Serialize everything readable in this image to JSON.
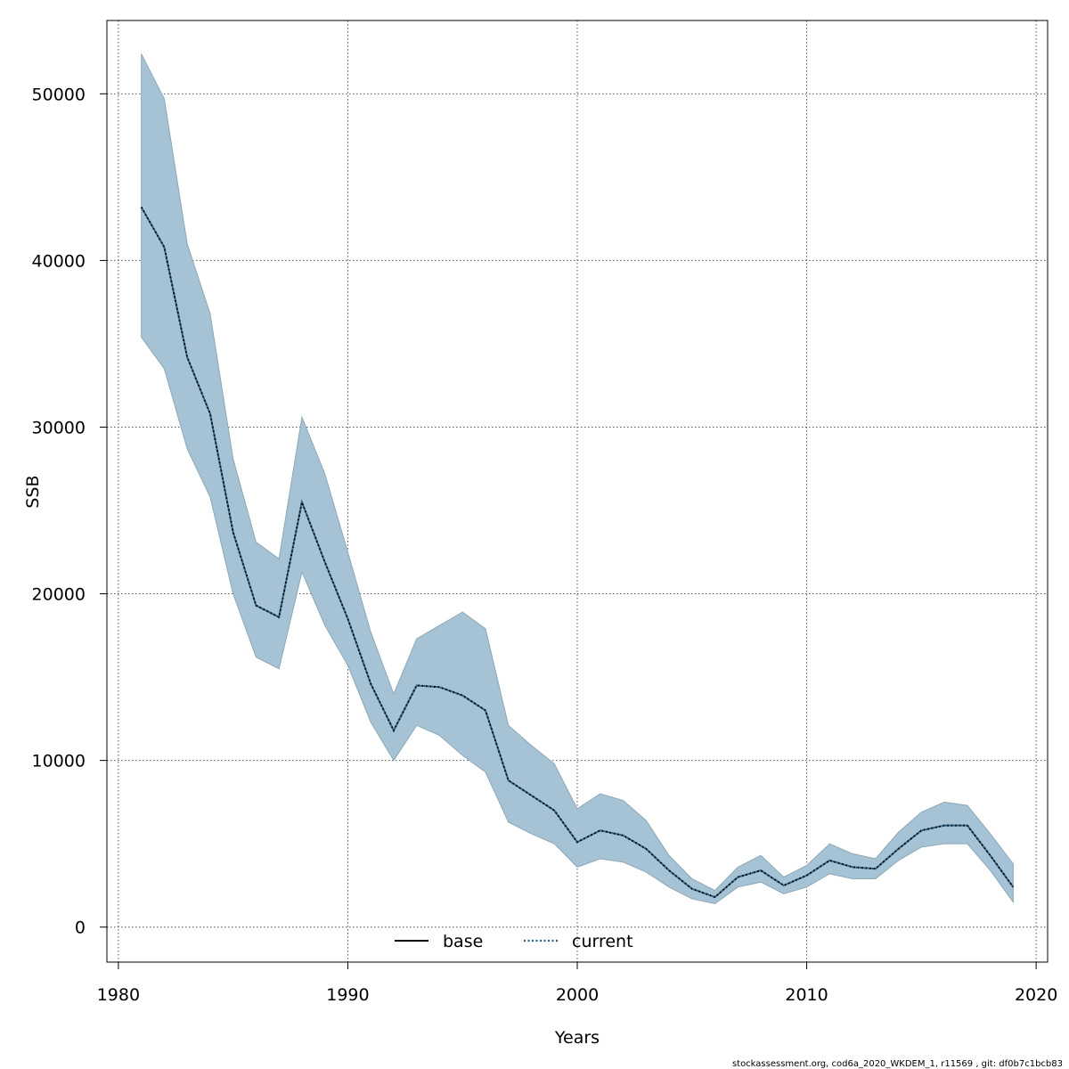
{
  "chart_data": {
    "type": "line",
    "xlabel": "Years",
    "ylabel": "SSB",
    "xlim": [
      1979.5,
      2020.5
    ],
    "ylim": [
      -2100,
      54400
    ],
    "x_ticks": [
      "1980",
      "1990",
      "2000",
      "2010",
      "2020"
    ],
    "y_ticks": [
      "0",
      "10000",
      "20000",
      "30000",
      "40000",
      "50000"
    ],
    "grid": true,
    "legend_position": "bottom-center",
    "legend": [
      {
        "label": "base",
        "style": "solid"
      },
      {
        "label": "current",
        "style": "dotted"
      }
    ],
    "colors": {
      "band_fill": "#a5c3d4",
      "band_edge": "#8ea8b6",
      "base_line": "#000000",
      "current_line": "#1f5f8b",
      "grid": "#555555"
    },
    "years": [
      1981,
      1982,
      1983,
      1984,
      1985,
      1986,
      1987,
      1988,
      1989,
      1990,
      1991,
      1992,
      1993,
      1994,
      1995,
      1996,
      1997,
      1998,
      1999,
      2000,
      2001,
      2002,
      2003,
      2004,
      2005,
      2006,
      2007,
      2008,
      2009,
      2010,
      2011,
      2012,
      2013,
      2014,
      2015,
      2016,
      2017,
      2018,
      2019
    ],
    "series": [
      {
        "name": "base",
        "values": [
          43200,
          40800,
          34200,
          30800,
          23700,
          19300,
          18600,
          25500,
          21900,
          18500,
          14600,
          11800,
          14500,
          14400,
          13900,
          13000,
          8800,
          7900,
          7000,
          5100,
          5800,
          5500,
          4700,
          3400,
          2300,
          1800,
          3000,
          3400,
          2500,
          3100,
          4000,
          3600,
          3500,
          4700,
          5800,
          6100,
          6100,
          4300,
          2400
        ]
      },
      {
        "name": "current",
        "values": [
          43200,
          40800,
          34200,
          30800,
          23700,
          19300,
          18600,
          25500,
          21900,
          18500,
          14600,
          11800,
          14500,
          14400,
          13900,
          13000,
          8800,
          7900,
          7000,
          5100,
          5800,
          5500,
          4700,
          3400,
          2300,
          1800,
          3000,
          3400,
          2500,
          3100,
          4000,
          3600,
          3500,
          4700,
          5800,
          6100,
          6100,
          4300,
          2400
        ]
      }
    ],
    "confidence_band": {
      "upper": [
        52400,
        49700,
        41000,
        36800,
        28100,
        23100,
        22100,
        30600,
        27200,
        22500,
        17700,
        14000,
        17300,
        18100,
        18900,
        17900,
        12100,
        10900,
        9800,
        7100,
        8000,
        7600,
        6400,
        4300,
        2900,
        2200,
        3600,
        4300,
        3000,
        3700,
        5000,
        4400,
        4100,
        5700,
        6900,
        7500,
        7300,
        5600,
        3800
      ],
      "lower": [
        35400,
        33500,
        28700,
        25800,
        20000,
        16200,
        15500,
        21300,
        18100,
        15700,
        12300,
        10000,
        12100,
        11500,
        10300,
        9300,
        6300,
        5600,
        5000,
        3600,
        4100,
        3900,
        3300,
        2400,
        1700,
        1400,
        2400,
        2700,
        2000,
        2400,
        3200,
        2900,
        2900,
        4000,
        4800,
        5000,
        5000,
        3400,
        1500
      ]
    }
  },
  "footer": "stockassessment.org, cod6a_2020_WKDEM_1, r11569 , git: df0b7c1bcb83"
}
